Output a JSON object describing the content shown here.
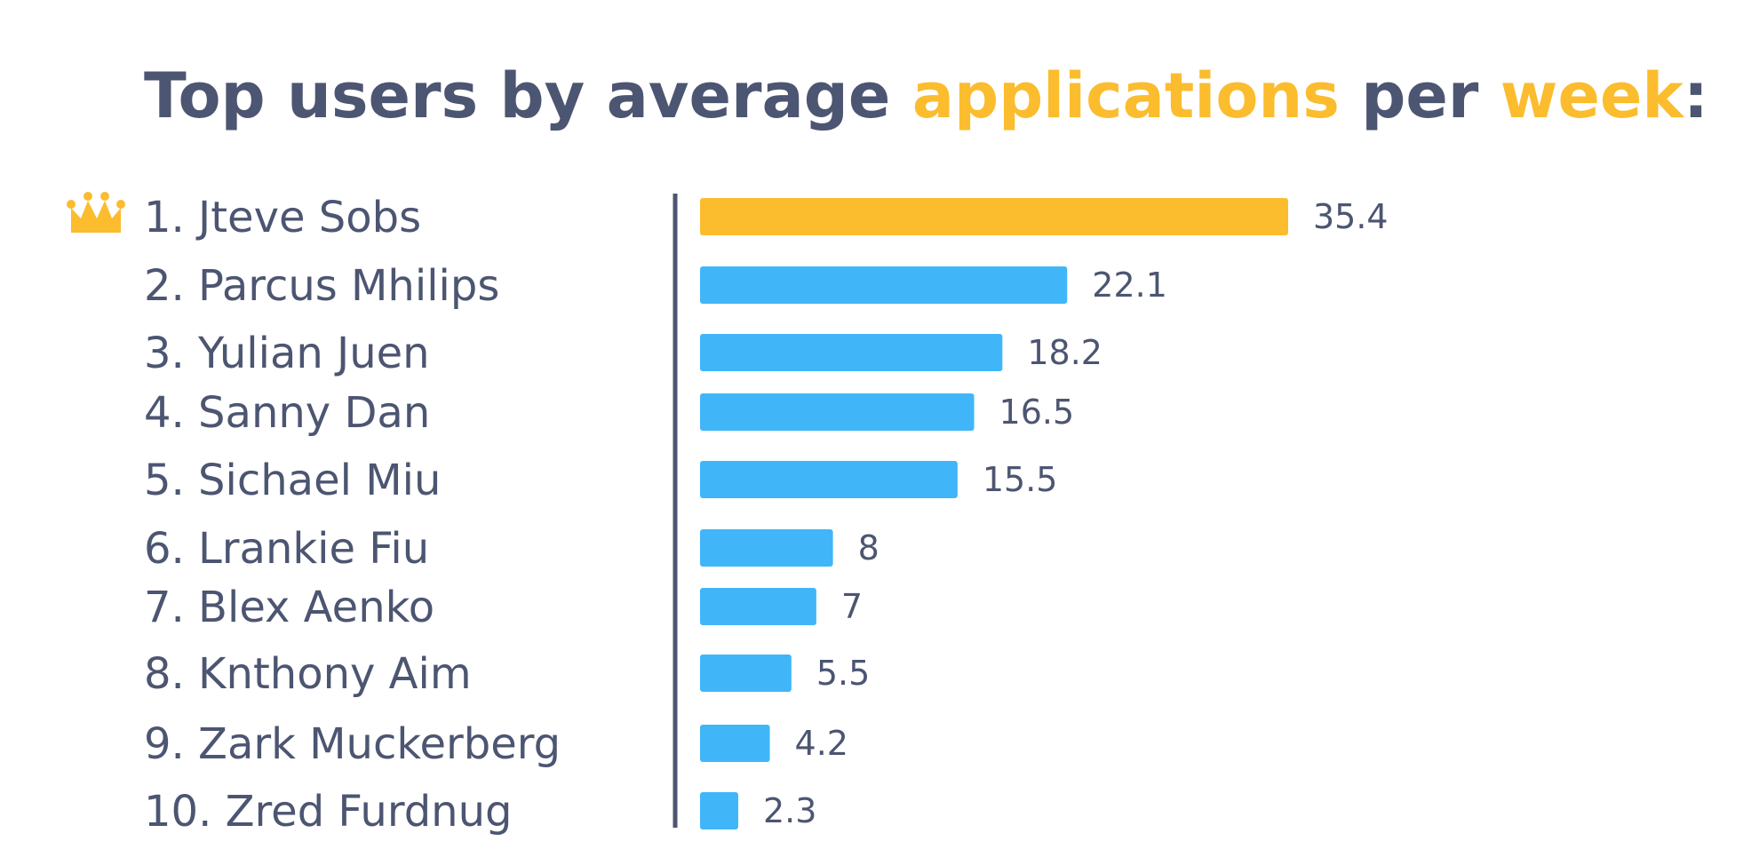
{
  "chart_data": {
    "type": "bar",
    "orientation": "horizontal",
    "title_segments": [
      {
        "text": "Top users by average ",
        "highlight": false
      },
      {
        "text": "applications",
        "highlight": true
      },
      {
        "text": " per ",
        "highlight": false
      },
      {
        "text": "week",
        "highlight": true
      },
      {
        "text": ":",
        "highlight": false
      }
    ],
    "categories": [
      "1. Jteve Sobs",
      "2. Parcus Mhilips",
      "3. Yulian Juen",
      "4. Sanny Dan",
      "5. Sichael Miu",
      "6. Lrankie Fiu",
      "7. Blex Aenko",
      "8. Knthony Aim",
      "9. Zark Muckerberg",
      "10. Zred Furdnug"
    ],
    "values": [
      35.4,
      22.1,
      18.2,
      16.5,
      15.5,
      8,
      7,
      5.5,
      4.2,
      2.3
    ],
    "value_labels": [
      "35.4",
      "22.1",
      "18.2",
      "16.5",
      "15.5",
      "8",
      "7",
      "5.5",
      "4.2",
      "2.3"
    ],
    "highlight_index": 0,
    "xlim": [
      0,
      35.4
    ],
    "grid": false,
    "legend": "none"
  },
  "colors": {
    "text": "#4c5571",
    "accent": "#fbbc2e",
    "bar": "#40b6f9",
    "axis": "#4c5571"
  },
  "icons": {
    "leader": "crown-icon"
  }
}
